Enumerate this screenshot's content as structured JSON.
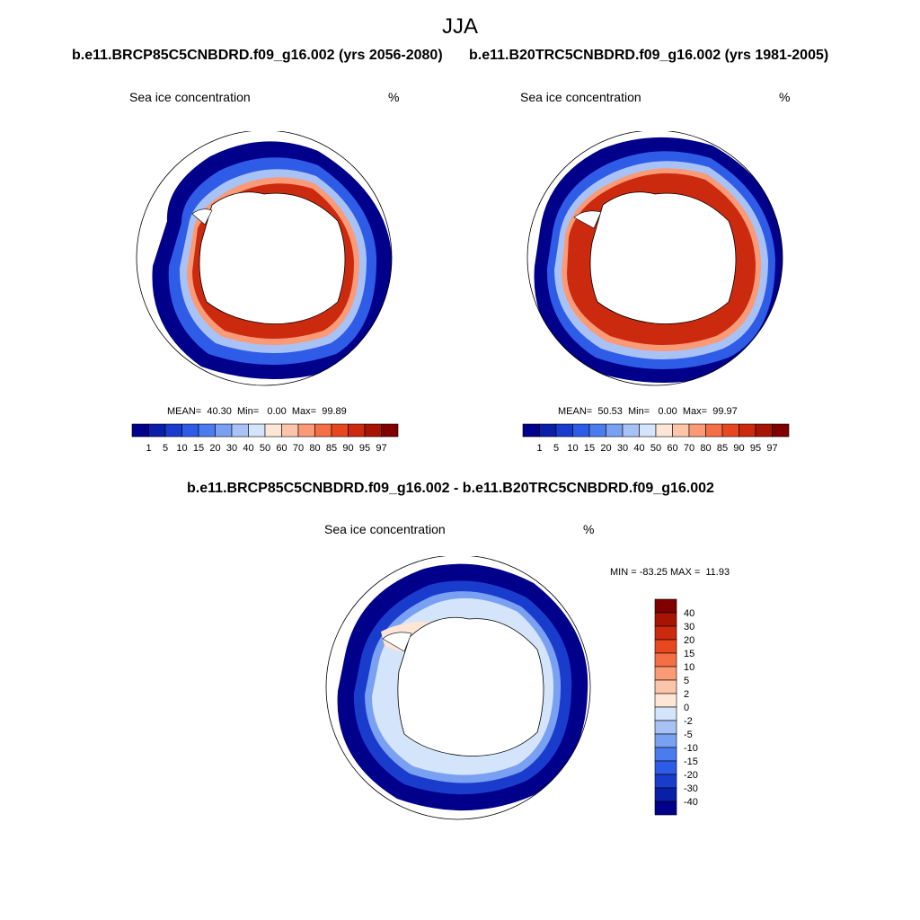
{
  "title": "JJA",
  "panels": [
    {
      "subtitle": "b.e11.BRCP85C5CNBDRD.f09_g16.002 (yrs 2056-2080)",
      "variable": "Sea ice concentration",
      "units": "%",
      "stats": {
        "mean": "40.30",
        "min": "0.00",
        "max": "99.89"
      },
      "stats_labels": {
        "mean": "MEAN=",
        "min": "Min=",
        "max": "Max="
      }
    },
    {
      "subtitle": "b.e11.B20TRC5CNBDRD.f09_g16.002 (yrs 1981-2005)",
      "variable": "Sea ice concentration",
      "units": "%",
      "stats": {
        "mean": "50.53",
        "min": "0.00",
        "max": "99.97"
      },
      "stats_labels": {
        "mean": "MEAN=",
        "min": "Min=",
        "max": "Max="
      }
    }
  ],
  "difference_panel": {
    "subtitle": "b.e11.BRCP85C5CNBDRD.f09_g16.002 - b.e11.B20TRC5CNBDRD.f09_g16.002",
    "variable": "Sea ice concentration",
    "units": "%",
    "minmax_text": "MIN = -83.25 MAX =  11.93"
  },
  "colorbar_absolute": {
    "labels": [
      "1",
      "5",
      "10",
      "15",
      "20",
      "30",
      "40",
      "50",
      "60",
      "70",
      "80",
      "85",
      "90",
      "95",
      "97"
    ],
    "colors": [
      "#00008b",
      "#0a1fa8",
      "#1a3ccc",
      "#2e5ce6",
      "#4a7cf0",
      "#7aa0f2",
      "#a8c2f5",
      "#d4e4fa",
      "#fde6d6",
      "#fcc4a8",
      "#fa9a76",
      "#f56f45",
      "#e8481f",
      "#cc2a0e",
      "#a81404",
      "#800000"
    ]
  },
  "colorbar_difference": {
    "labels": [
      "40",
      "30",
      "20",
      "15",
      "10",
      "5",
      "2",
      "0",
      "-2",
      "-5",
      "-10",
      "-15",
      "-20",
      "-30",
      "-40"
    ],
    "colors": [
      "#800000",
      "#a81404",
      "#cc2a0e",
      "#e8481f",
      "#f56f45",
      "#fa9a76",
      "#fcc4a8",
      "#fde6d6",
      "#d4e4fa",
      "#a8c2f5",
      "#7aa0f2",
      "#4a7cf0",
      "#2e5ce6",
      "#1a3ccc",
      "#0a1fa8",
      "#00008b"
    ]
  }
}
